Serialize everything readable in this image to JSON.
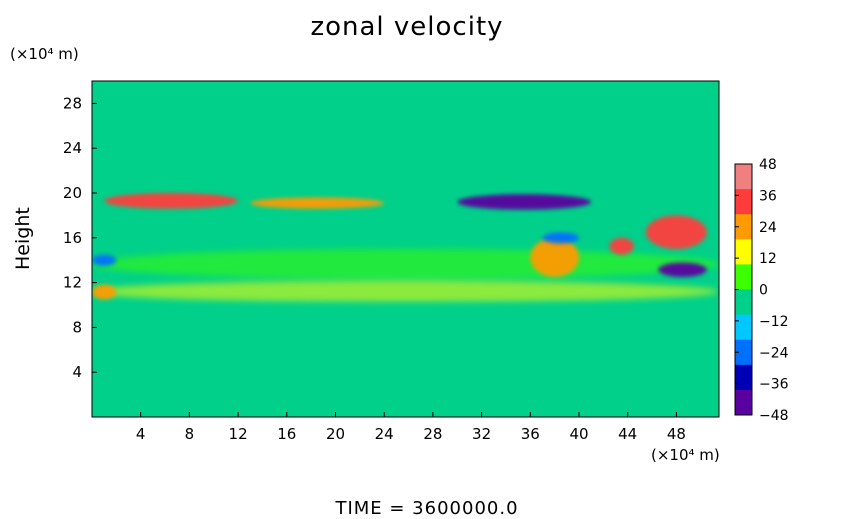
{
  "chart_data": {
    "type": "heatmap",
    "title": "zonal velocity",
    "ylabel": "Height",
    "x_unit": "(×10⁴ m)",
    "y_unit": "(×10⁴ m)",
    "footer": "TIME  =  3600000.0",
    "xlim": [
      0,
      51.5
    ],
    "ylim": [
      0,
      30
    ],
    "x_ticks": [
      4,
      8,
      12,
      16,
      20,
      24,
      28,
      32,
      36,
      40,
      44,
      48
    ],
    "y_ticks": [
      4,
      8,
      12,
      16,
      20,
      24,
      28
    ],
    "colorbar": {
      "min": -48,
      "max": 48,
      "ticks": [
        48,
        36,
        24,
        12,
        0,
        -12,
        -24,
        -36,
        -48
      ],
      "colors": [
        "#f08080",
        "#ff3c3c",
        "#ff9b00",
        "#ffff00",
        "#3cff00",
        "#00d08a",
        "#00c8ff",
        "#0070ff",
        "#0000b4",
        "#5a00a0"
      ]
    },
    "background_value": 0,
    "features": [
      {
        "kind": "jet",
        "x": [
          1,
          12
        ],
        "y": [
          18.6,
          20
        ],
        "value": 36
      },
      {
        "kind": "jet",
        "x": [
          13,
          24
        ],
        "y": [
          18.6,
          19.6
        ],
        "value": 20
      },
      {
        "kind": "jet",
        "x": [
          30,
          41
        ],
        "y": [
          18.5,
          19.9
        ],
        "value": -44
      },
      {
        "kind": "band",
        "x": [
          0,
          51.5
        ],
        "y": [
          15,
          18
        ],
        "value": -8
      },
      {
        "kind": "band",
        "x": [
          0,
          51.5
        ],
        "y": [
          12.3,
          15
        ],
        "value": 8
      },
      {
        "kind": "band",
        "x": [
          0,
          51.5
        ],
        "y": [
          10.2,
          12.2
        ],
        "value": 14
      },
      {
        "kind": "band",
        "x": [
          0,
          51.5
        ],
        "y": [
          8.8,
          10.2
        ],
        "value": -6
      },
      {
        "kind": "eddy",
        "x": [
          45.5,
          50.5
        ],
        "y": [
          15,
          18
        ],
        "value": 38
      },
      {
        "kind": "eddy",
        "x": [
          46.5,
          50.5
        ],
        "y": [
          12.5,
          13.8
        ],
        "value": -42
      },
      {
        "kind": "eddy",
        "x": [
          42.5,
          44.5
        ],
        "y": [
          14.5,
          16
        ],
        "value": 30
      },
      {
        "kind": "eddy",
        "x": [
          36,
          40
        ],
        "y": [
          12.5,
          16
        ],
        "value": 22
      },
      {
        "kind": "eddy",
        "x": [
          0,
          2
        ],
        "y": [
          10.5,
          11.8
        ],
        "value": 28
      },
      {
        "kind": "eddy",
        "x": [
          0,
          2
        ],
        "y": [
          13.5,
          14.5
        ],
        "value": -20
      },
      {
        "kind": "eddy",
        "x": [
          37,
          40
        ],
        "y": [
          15.5,
          16.5
        ],
        "value": -20
      }
    ]
  }
}
